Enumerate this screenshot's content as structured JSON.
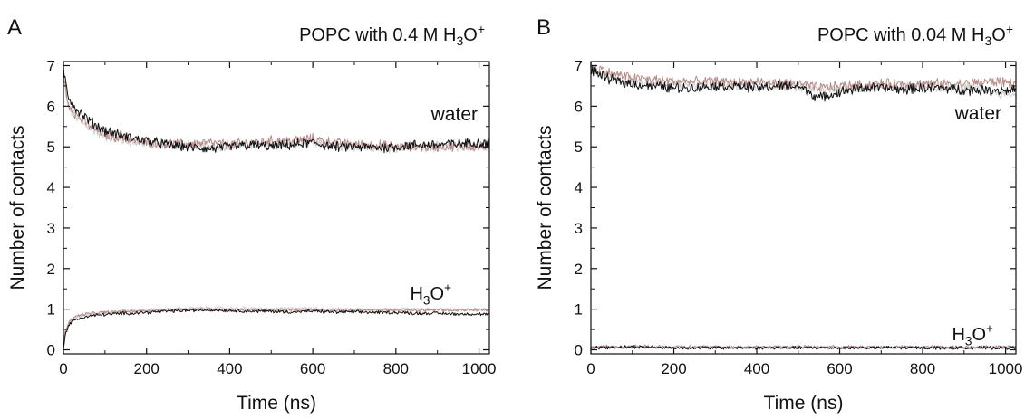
{
  "chart_data": [
    {
      "panel_label": "A",
      "type": "line",
      "title_prefix": "POPC with 0.4 M H",
      "title_sub": "3",
      "title_mid": "O",
      "title_sup": "+",
      "xlabel": "Time (ns)",
      "ylabel": "Number of contacts",
      "xlim": [
        0,
        1025
      ],
      "ylim": [
        -0.1,
        7.1
      ],
      "xticks": [
        0,
        200,
        400,
        600,
        800,
        1000
      ],
      "yticks": [
        0,
        1,
        2,
        3,
        4,
        5,
        6,
        7
      ],
      "annotations": {
        "water": "water",
        "h3o_main": "H",
        "h3o_sub": "3",
        "h3o_mid": "O",
        "h3o_sup": "+"
      },
      "series": [
        {
          "group": "water",
          "color": "#111111",
          "x": [
            0,
            10,
            25,
            50,
            75,
            100,
            150,
            200,
            250,
            300,
            350,
            400,
            450,
            500,
            550,
            600,
            650,
            700,
            750,
            800,
            850,
            900,
            950,
            1000,
            1025
          ],
          "y": [
            6.9,
            6.3,
            6.0,
            5.75,
            5.55,
            5.4,
            5.25,
            5.15,
            5.05,
            5.0,
            4.95,
            5.0,
            5.05,
            5.0,
            5.05,
            5.1,
            5.0,
            5.0,
            4.98,
            5.0,
            5.05,
            5.05,
            5.08,
            5.1,
            5.1
          ]
        },
        {
          "group": "water",
          "color": "#b58b87",
          "x": [
            0,
            10,
            25,
            50,
            75,
            100,
            150,
            200,
            250,
            300,
            350,
            400,
            450,
            500,
            550,
            600,
            650,
            700,
            750,
            800,
            850,
            900,
            950,
            1000,
            1025
          ],
          "y": [
            6.8,
            6.1,
            5.85,
            5.6,
            5.45,
            5.3,
            5.2,
            5.1,
            5.08,
            5.05,
            5.1,
            5.05,
            5.1,
            5.15,
            5.15,
            5.2,
            5.1,
            5.05,
            5.05,
            5.0,
            5.0,
            5.0,
            5.02,
            5.0,
            5.0
          ]
        },
        {
          "group": "water",
          "color": "#cfcfcf",
          "x": [
            0,
            10,
            25,
            50,
            75,
            100,
            150,
            200,
            250,
            300,
            350,
            400,
            450,
            500,
            550,
            600,
            650,
            700,
            750,
            800,
            850,
            900,
            950,
            1000,
            1025
          ],
          "y": [
            6.7,
            6.0,
            5.8,
            5.55,
            5.4,
            5.25,
            5.15,
            5.08,
            5.05,
            5.03,
            5.02,
            5.02,
            5.05,
            5.05,
            5.05,
            5.08,
            5.03,
            5.0,
            5.0,
            4.98,
            5.0,
            5.0,
            5.0,
            5.0,
            5.0
          ]
        },
        {
          "group": "h3o",
          "color": "#111111",
          "x": [
            0,
            5,
            15,
            30,
            50,
            75,
            100,
            150,
            200,
            250,
            300,
            350,
            400,
            450,
            500,
            550,
            600,
            650,
            700,
            750,
            800,
            850,
            900,
            950,
            1000,
            1025
          ],
          "y": [
            0.05,
            0.4,
            0.65,
            0.75,
            0.8,
            0.85,
            0.87,
            0.9,
            0.92,
            0.95,
            0.97,
            0.98,
            0.97,
            0.95,
            0.95,
            0.93,
            0.95,
            0.93,
            0.93,
            0.92,
            0.92,
            0.9,
            0.9,
            0.88,
            0.88,
            0.87
          ]
        },
        {
          "group": "h3o",
          "color": "#b58b87",
          "x": [
            0,
            5,
            15,
            30,
            50,
            75,
            100,
            150,
            200,
            250,
            300,
            350,
            400,
            450,
            500,
            550,
            600,
            650,
            700,
            750,
            800,
            850,
            900,
            950,
            1000,
            1025
          ],
          "y": [
            0.1,
            0.5,
            0.72,
            0.82,
            0.88,
            0.9,
            0.92,
            0.95,
            0.97,
            0.98,
            1.0,
            1.0,
            0.98,
            0.98,
            0.97,
            0.98,
            0.98,
            0.97,
            0.97,
            0.98,
            0.98,
            0.97,
            0.98,
            0.98,
            0.99,
            0.99
          ]
        },
        {
          "group": "h3o",
          "color": "#cfcfcf",
          "x": [
            0,
            5,
            15,
            30,
            50,
            75,
            100,
            150,
            200,
            250,
            300,
            350,
            400,
            450,
            500,
            550,
            600,
            650,
            700,
            750,
            800,
            850,
            900,
            950,
            1000,
            1025
          ],
          "y": [
            0.1,
            0.45,
            0.7,
            0.8,
            0.86,
            0.9,
            0.92,
            0.95,
            0.98,
            1.0,
            1.02,
            1.03,
            1.02,
            1.02,
            1.0,
            1.02,
            1.02,
            1.0,
            1.0,
            1.0,
            1.0,
            1.0,
            1.0,
            0.98,
            0.98,
            0.98
          ]
        }
      ]
    },
    {
      "panel_label": "B",
      "type": "line",
      "title_prefix": "POPC with 0.04 M H",
      "title_sub": "3",
      "title_mid": "O",
      "title_sup": "+",
      "xlabel": "Time (ns)",
      "ylabel": "Number of contacts",
      "xlim": [
        0,
        1025
      ],
      "ylim": [
        -0.1,
        7.1
      ],
      "xticks": [
        0,
        200,
        400,
        600,
        800,
        1000
      ],
      "yticks": [
        0,
        1,
        2,
        3,
        4,
        5,
        6,
        7
      ],
      "annotations": {
        "water": "water",
        "h3o_main": "H",
        "h3o_sub": "3",
        "h3o_mid": "O",
        "h3o_sup": "+"
      },
      "series": [
        {
          "group": "water",
          "color": "#111111",
          "x": [
            0,
            25,
            50,
            100,
            150,
            200,
            250,
            300,
            350,
            400,
            450,
            500,
            550,
            600,
            650,
            700,
            750,
            800,
            850,
            900,
            950,
            1000,
            1025
          ],
          "y": [
            6.9,
            6.75,
            6.65,
            6.55,
            6.5,
            6.45,
            6.45,
            6.5,
            6.5,
            6.45,
            6.5,
            6.5,
            6.2,
            6.35,
            6.45,
            6.45,
            6.4,
            6.45,
            6.45,
            6.4,
            6.4,
            6.4,
            6.4
          ]
        },
        {
          "group": "water",
          "color": "#b58b87",
          "x": [
            0,
            25,
            50,
            100,
            150,
            200,
            250,
            300,
            350,
            400,
            450,
            500,
            550,
            600,
            650,
            700,
            750,
            800,
            850,
            900,
            950,
            1000,
            1025
          ],
          "y": [
            7.0,
            6.9,
            6.8,
            6.7,
            6.65,
            6.62,
            6.6,
            6.6,
            6.58,
            6.6,
            6.55,
            6.55,
            6.45,
            6.5,
            6.52,
            6.55,
            6.55,
            6.55,
            6.55,
            6.55,
            6.6,
            6.6,
            6.55
          ]
        },
        {
          "group": "water",
          "color": "#cfcfcf",
          "x": [
            0,
            25,
            50,
            100,
            150,
            200,
            250,
            300,
            350,
            400,
            450,
            500,
            550,
            600,
            650,
            700,
            750,
            800,
            850,
            900,
            950,
            1000,
            1025
          ],
          "y": [
            6.9,
            6.8,
            6.7,
            6.6,
            6.55,
            6.55,
            6.5,
            6.5,
            6.5,
            6.5,
            6.5,
            6.5,
            6.4,
            6.45,
            6.45,
            6.5,
            6.5,
            6.45,
            6.45,
            6.45,
            6.4,
            6.3,
            6.3
          ]
        },
        {
          "group": "h3o",
          "color": "#111111",
          "x": [
            0,
            100,
            200,
            300,
            400,
            500,
            600,
            700,
            800,
            900,
            1000,
            1025
          ],
          "y": [
            0.05,
            0.07,
            0.05,
            0.05,
            0.05,
            0.05,
            0.05,
            0.05,
            0.05,
            0.05,
            0.05,
            0.05
          ]
        },
        {
          "group": "h3o",
          "color": "#b58b87",
          "x": [
            0,
            100,
            200,
            300,
            400,
            500,
            600,
            700,
            800,
            900,
            1000,
            1025
          ],
          "y": [
            0.07,
            0.08,
            0.07,
            0.07,
            0.07,
            0.07,
            0.07,
            0.07,
            0.07,
            0.07,
            0.07,
            0.07
          ]
        },
        {
          "group": "h3o",
          "color": "#cfcfcf",
          "x": [
            0,
            100,
            200,
            300,
            400,
            500,
            600,
            700,
            800,
            900,
            1000,
            1025
          ],
          "y": [
            0.06,
            0.06,
            0.06,
            0.06,
            0.06,
            0.06,
            0.06,
            0.06,
            0.06,
            0.06,
            0.06,
            0.06
          ]
        }
      ]
    }
  ]
}
